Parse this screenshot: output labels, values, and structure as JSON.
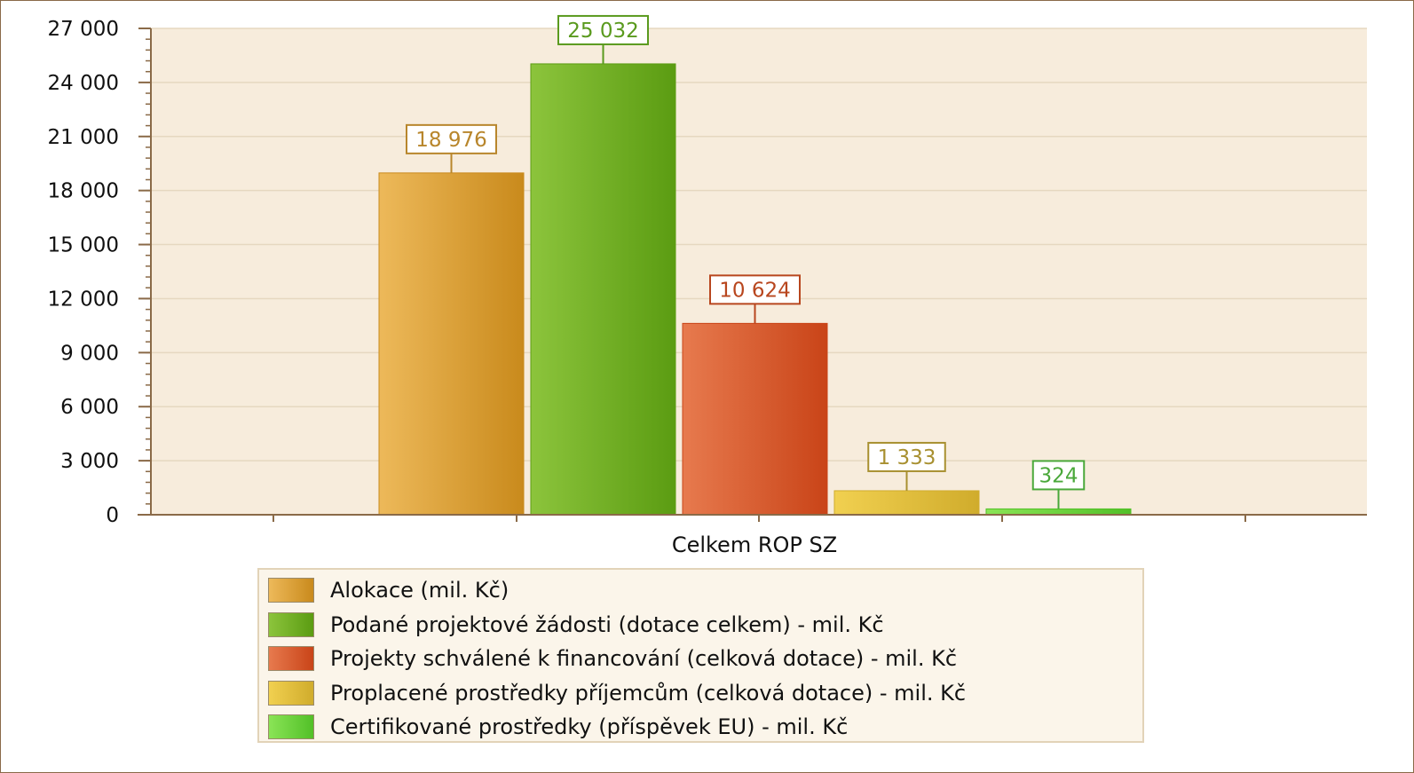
{
  "chart_data": {
    "type": "bar",
    "categories": [
      "Celkem ROP SZ"
    ],
    "ylim": [
      0,
      27000
    ],
    "yticks": [
      "0",
      "3 000",
      "6 000",
      "9 000",
      "12 000",
      "15 000",
      "18 000",
      "21 000",
      "24 000",
      "27 000"
    ],
    "grid": true,
    "legend_position": "bottom",
    "series": [
      {
        "name": "Alokace (mil. Kč)",
        "values": [
          18976
        ],
        "label": "18 976",
        "color": "#d9a03a",
        "color_light": "#edb95a",
        "color_dark": "#c98a1c",
        "label_color": "#b8862c"
      },
      {
        "name": "Podané projektové žádosti (dotace celkem) - mil. Kč",
        "values": [
          25032
        ],
        "label": "25 032",
        "color": "#6eae22",
        "color_light": "#8cc43c",
        "color_dark": "#5b9c12",
        "label_color": "#5a9a1e"
      },
      {
        "name": "Projekty schválené k financování (celková dotace) - mil. Kč",
        "values": [
          10624
        ],
        "label": "10 624",
        "color": "#d9592b",
        "color_light": "#e77a4e",
        "color_dark": "#c94418",
        "label_color": "#b8461e"
      },
      {
        "name": "Proplacené prostředky příjemcům (celková dotace) - mil. Kč",
        "values": [
          1333
        ],
        "label": "1 333",
        "color": "#e1bf3e",
        "color_light": "#f1d050",
        "color_dark": "#d0ac2c",
        "label_color": "#a89030"
      },
      {
        "name": "Certifikované prostředky (příspěvek EU) - mil. Kč",
        "values": [
          324
        ],
        "label": "324",
        "color": "#6ed43e",
        "color_light": "#8ae456",
        "color_dark": "#52c028",
        "label_color": "#4aa83a"
      }
    ]
  },
  "colors": {
    "plot_background": "#f7ecdc",
    "gridline": "#e6d8c0",
    "axis": "#8a6a48"
  }
}
